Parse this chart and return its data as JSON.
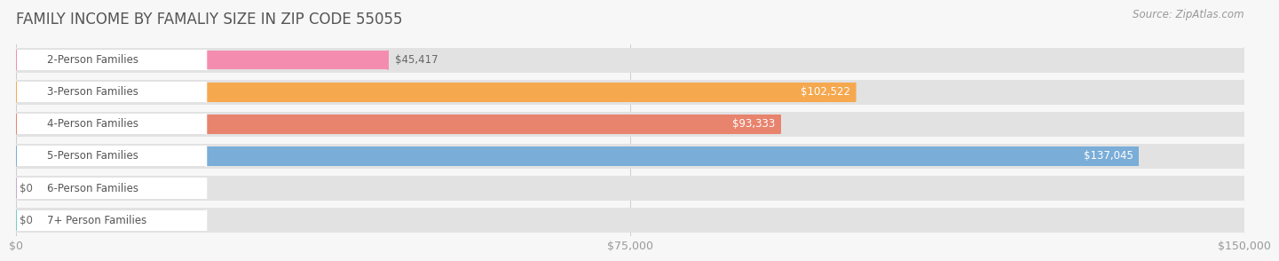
{
  "title": "FAMILY INCOME BY FAMALIY SIZE IN ZIP CODE 55055",
  "source": "Source: ZipAtlas.com",
  "categories": [
    "2-Person Families",
    "3-Person Families",
    "4-Person Families",
    "5-Person Families",
    "6-Person Families",
    "7+ Person Families"
  ],
  "values": [
    45417,
    102522,
    93333,
    137045,
    0,
    0
  ],
  "bar_colors": [
    "#f48cb0",
    "#f5a84e",
    "#e8836e",
    "#7aadd8",
    "#c4a8d4",
    "#72cec8"
  ],
  "value_labels": [
    "$45,417",
    "$102,522",
    "$93,333",
    "$137,045",
    "$0",
    "$0"
  ],
  "xlim": [
    0,
    150000
  ],
  "xtick_labels": [
    "$0",
    "$75,000",
    "$150,000"
  ],
  "background_color": "#f7f7f7",
  "bar_bg_color": "#e2e2e2",
  "title_fontsize": 12,
  "source_fontsize": 8.5,
  "label_fontsize": 8.5,
  "value_fontsize": 8.5
}
